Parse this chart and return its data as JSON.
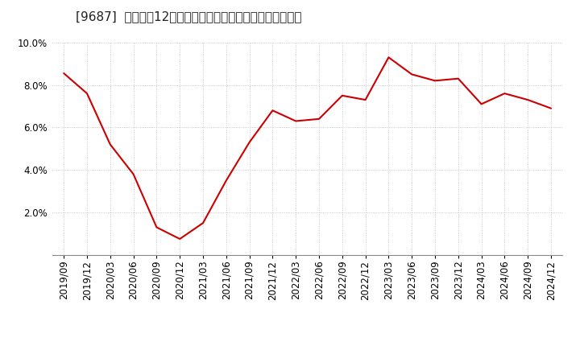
{
  "title": "[9687]  売上高の12か月移動合計の対前年同期増減率の推移",
  "line_color": "#cc0000",
  "background_color": "#ffffff",
  "plot_bg_color": "#ffffff",
  "grid_color": "#bbbbbb",
  "ylim": [
    0.0,
    0.1
  ],
  "yticks": [
    0.02,
    0.04,
    0.06,
    0.08,
    0.1
  ],
  "ytick_labels": [
    "2.0%",
    "4.0%",
    "6.0%",
    "8.0%",
    "10.0%"
  ],
  "dates": [
    "2019/09",
    "2019/12",
    "2020/03",
    "2020/06",
    "2020/09",
    "2020/12",
    "2021/03",
    "2021/06",
    "2021/09",
    "2021/12",
    "2022/03",
    "2022/06",
    "2022/09",
    "2022/12",
    "2023/03",
    "2023/06",
    "2023/09",
    "2023/12",
    "2024/03",
    "2024/06",
    "2024/09",
    "2024/12"
  ],
  "values": [
    0.0855,
    0.076,
    0.052,
    0.038,
    0.013,
    0.0075,
    0.015,
    0.035,
    0.053,
    0.068,
    0.063,
    0.064,
    0.075,
    0.073,
    0.093,
    0.085,
    0.082,
    0.083,
    0.071,
    0.076,
    0.073,
    0.069
  ],
  "title_fontsize": 11,
  "tick_fontsize": 8.5
}
